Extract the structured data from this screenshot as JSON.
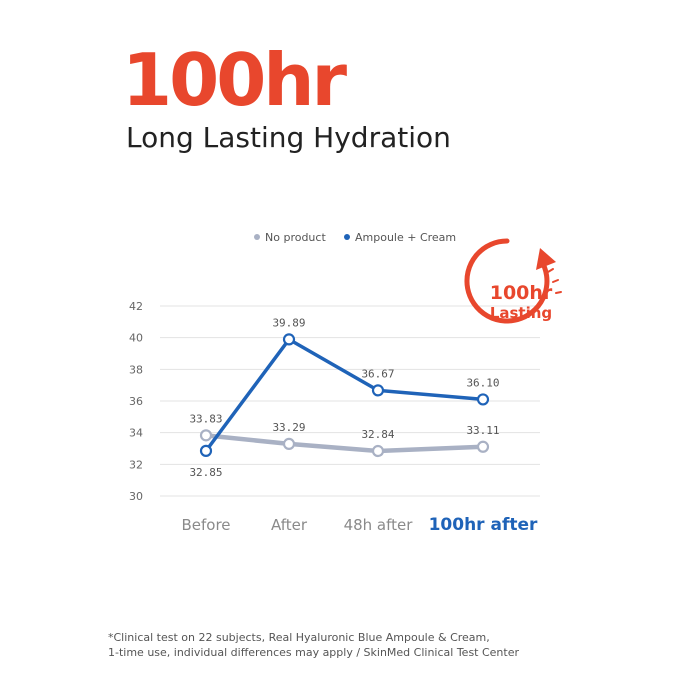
{
  "headline": {
    "big": "100hr",
    "sub": "Long Lasting Hydration"
  },
  "badge": {
    "line1": "100hr",
    "line2": "Lasting",
    "color": "#e8472d"
  },
  "chart_data": {
    "type": "line",
    "categories": [
      "Before",
      "After",
      "48h after",
      "100hr after"
    ],
    "highlight_category": "100hr after",
    "ylim": [
      30,
      42
    ],
    "yticks": [
      30,
      32,
      34,
      36,
      38,
      40,
      42
    ],
    "grid": true,
    "legend_position": "top",
    "series": [
      {
        "name": "No product",
        "values": [
          33.83,
          33.29,
          32.84,
          33.11
        ],
        "labels": [
          "33.83",
          "33.29",
          "32.84",
          "33.11"
        ],
        "color": "#a9b1c4"
      },
      {
        "name": "Ampoule + Cream",
        "values": [
          32.85,
          39.89,
          36.67,
          36.1
        ],
        "labels": [
          "32.85",
          "39.89",
          "36.67",
          "36.10"
        ],
        "color": "#1f63b8"
      }
    ]
  },
  "footnote": {
    "line1": "*Clinical test on 22 subjects, Real Hyaluronic Blue Ampoule & Cream,",
    "line2": "1-time use, individual differences may apply / SkinMed Clinical Test Center"
  }
}
